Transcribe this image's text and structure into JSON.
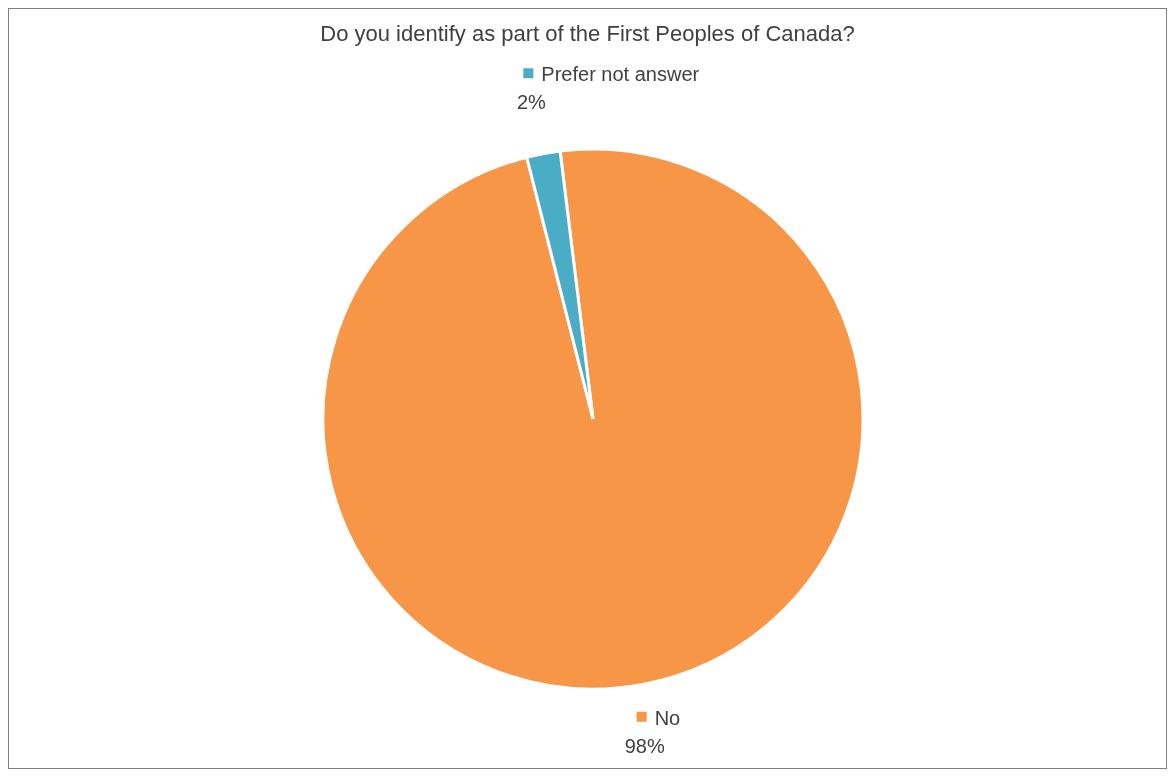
{
  "chart_data": {
    "type": "pie",
    "title": "Do you identify as part of the First Peoples of Canada?",
    "categories": [
      "No",
      "Prefer not answer"
    ],
    "values": [
      98,
      2
    ],
    "colors": [
      "#f79646",
      "#4bacc6"
    ],
    "value_labels": [
      "98%",
      "2%"
    ],
    "legend": "top"
  }
}
